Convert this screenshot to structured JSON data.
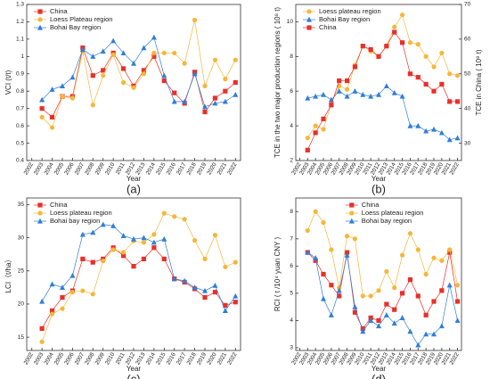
{
  "chart_data": [
    {
      "type": "line",
      "panel_label": "(a)",
      "xlabel": "Year",
      "ylabel": "VCI (t/t)",
      "legend": "upper left",
      "x": [
        2003,
        2004,
        2005,
        2006,
        2007,
        2008,
        2009,
        2010,
        2011,
        2012,
        2013,
        2014,
        2015,
        2016,
        2017,
        2018,
        2019,
        2020,
        2021,
        2022
      ],
      "xlim": [
        2001.5,
        2022.5
      ],
      "xticks": [
        2002,
        2003,
        2004,
        2005,
        2006,
        2007,
        2008,
        2009,
        2010,
        2011,
        2012,
        2013,
        2014,
        2015,
        2016,
        2017,
        2018,
        2019,
        2020,
        2021,
        2022
      ],
      "ylim": [
        0.4,
        1.3
      ],
      "yticks": [
        0.4,
        0.5,
        0.6,
        0.7,
        0.8,
        0.9,
        1.0,
        1.1,
        1.2,
        1.3
      ],
      "series": [
        {
          "name": "China",
          "color": "#e8302a",
          "marker": "s",
          "values": [
            0.7,
            0.65,
            0.77,
            0.77,
            1.05,
            0.89,
            0.92,
            1.02,
            0.93,
            0.83,
            0.92,
            1.0,
            0.86,
            0.79,
            0.73,
            0.91,
            0.68,
            0.76,
            0.8,
            0.85
          ]
        },
        {
          "name": "Loess Plateau region",
          "color": "#f4b73a",
          "marker": "o",
          "values": [
            0.65,
            0.59,
            0.77,
            0.76,
            1.03,
            0.72,
            0.89,
            1.01,
            0.85,
            0.82,
            0.9,
            1.02,
            1.02,
            1.02,
            0.96,
            1.21,
            0.83,
            0.98,
            0.87,
            0.98
          ]
        },
        {
          "name": "Bohai Bay region",
          "color": "#2f7ed8",
          "marker": "^",
          "values": [
            0.75,
            0.81,
            0.83,
            0.88,
            1.04,
            1.0,
            1.03,
            1.09,
            1.02,
            0.96,
            1.05,
            1.11,
            0.89,
            0.74,
            0.74,
            0.9,
            0.71,
            0.73,
            0.74,
            0.78
          ]
        }
      ]
    },
    {
      "type": "line",
      "panel_label": "(b)",
      "xlabel": "Year",
      "ylabel": "TCE in the two major production regions ( 10⁸ t)",
      "y2label": "TCE in China  ( 10⁸ t)",
      "legend": "upper left",
      "x": [
        2003,
        2004,
        2005,
        2006,
        2007,
        2008,
        2009,
        2010,
        2011,
        2012,
        2013,
        2014,
        2015,
        2016,
        2017,
        2018,
        2019,
        2020,
        2021,
        2022
      ],
      "xlim": [
        2001.5,
        2022.5
      ],
      "xticks": [
        2002,
        2003,
        2004,
        2005,
        2006,
        2007,
        2008,
        2009,
        2010,
        2011,
        2012,
        2013,
        2014,
        2015,
        2016,
        2017,
        2018,
        2019,
        2020,
        2021,
        2022
      ],
      "ylim": [
        2,
        11
      ],
      "yticks": [
        2,
        4,
        6,
        8,
        10
      ],
      "y2lim": [
        25,
        70
      ],
      "y2ticks": [
        30,
        40,
        50,
        60,
        70
      ],
      "series": [
        {
          "name": "Loess plateau region",
          "color": "#f4b73a",
          "marker": "o",
          "values": [
            3.3,
            4.0,
            3.8,
            5.3,
            6.3,
            6.1,
            7.5,
            8.6,
            8.3,
            8.0,
            8.6,
            9.7,
            10.4,
            8.8,
            8.7,
            8.0,
            7.4,
            8.2,
            7.0,
            6.9
          ]
        },
        {
          "name": "Bohai Bay region",
          "color": "#2f7ed8",
          "marker": "^",
          "values": [
            5.6,
            5.7,
            5.8,
            5.5,
            6.0,
            5.7,
            6.0,
            5.8,
            5.7,
            5.8,
            6.3,
            5.9,
            5.7,
            4.0,
            4.0,
            3.7,
            3.8,
            3.6,
            3.2,
            3.3
          ]
        },
        {
          "name": "China",
          "color": "#e8302a",
          "marker": "s",
          "axis": "y2",
          "values": [
            28,
            33,
            37,
            41,
            48,
            48,
            52,
            58,
            57,
            55,
            58,
            62,
            59,
            50,
            49,
            47,
            45,
            47,
            42,
            42
          ]
        }
      ]
    },
    {
      "type": "line",
      "panel_label": "(c)",
      "xlabel": "Year",
      "ylabel": "LCI（t/ha）",
      "legend": "upper left",
      "x": [
        2003,
        2004,
        2005,
        2006,
        2007,
        2008,
        2009,
        2010,
        2011,
        2012,
        2013,
        2014,
        2015,
        2016,
        2017,
        2018,
        2019,
        2020,
        2021,
        2022
      ],
      "xlim": [
        2001.5,
        2022.5
      ],
      "xticks": [
        2002,
        2003,
        2004,
        2005,
        2006,
        2007,
        2008,
        2009,
        2010,
        2011,
        2012,
        2013,
        2014,
        2015,
        2016,
        2017,
        2018,
        2019,
        2020,
        2021,
        2022
      ],
      "ylim": [
        13,
        36
      ],
      "yticks": [
        15,
        20,
        25,
        30,
        35
      ],
      "series": [
        {
          "name": "China",
          "color": "#e8302a",
          "marker": "s",
          "values": [
            16.3,
            19.0,
            21.0,
            22.0,
            26.8,
            26.3,
            26.8,
            28.5,
            27.3,
            25.7,
            26.8,
            28.5,
            26.8,
            23.8,
            23.3,
            22.3,
            21.0,
            21.8,
            19.8,
            20.3
          ]
        },
        {
          "name": "Loess plateau region",
          "color": "#f4b73a",
          "marker": "o",
          "values": [
            14.3,
            18.5,
            19.3,
            21.8,
            22.0,
            21.5,
            26.5,
            28.2,
            27.8,
            29.5,
            29.3,
            30.5,
            33.7,
            33.2,
            32.8,
            29.6,
            26.8,
            30.4,
            25.6,
            26.3
          ]
        },
        {
          "name": "Bohai bay region",
          "color": "#2f7ed8",
          "marker": "^",
          "values": [
            20.4,
            23.0,
            22.5,
            24.3,
            30.5,
            30.8,
            32.0,
            31.8,
            30.3,
            29.8,
            30.0,
            29.3,
            29.8,
            23.8,
            23.5,
            22.5,
            22.0,
            22.8,
            19.0,
            21.2
          ]
        }
      ]
    },
    {
      "type": "line",
      "panel_label": "(d)",
      "xlabel": "Year",
      "ylabel": "RCI ( t /10⁴ yuan CNY )",
      "legend": "upper center",
      "x": [
        2003,
        2004,
        2005,
        2006,
        2007,
        2008,
        2009,
        2010,
        2011,
        2012,
        2013,
        2014,
        2015,
        2016,
        2017,
        2018,
        2019,
        2020,
        2021,
        2022
      ],
      "xlim": [
        2001.5,
        2022.5
      ],
      "xticks": [
        2002,
        2003,
        2004,
        2005,
        2006,
        2007,
        2008,
        2009,
        2010,
        2011,
        2012,
        2013,
        2014,
        2015,
        2016,
        2017,
        2018,
        2019,
        2020,
        2021,
        2022
      ],
      "ylim": [
        2.9,
        8.5
      ],
      "yticks": [
        3,
        4,
        5,
        6,
        7,
        8
      ],
      "series": [
        {
          "name": "China",
          "color": "#e8302a",
          "marker": "s",
          "values": [
            6.5,
            6.2,
            5.7,
            5.3,
            4.9,
            6.5,
            4.3,
            3.7,
            4.1,
            4.0,
            4.6,
            4.4,
            5.0,
            5.5,
            4.9,
            4.2,
            4.7,
            5.1,
            6.5,
            4.7
          ]
        },
        {
          "name": "Loess plateau region",
          "color": "#f4b73a",
          "marker": "o",
          "values": [
            7.3,
            8.0,
            7.6,
            6.6,
            5.2,
            7.1,
            7.0,
            4.9,
            4.9,
            5.1,
            5.8,
            5.2,
            6.4,
            7.2,
            6.6,
            5.7,
            6.3,
            6.2,
            6.6,
            5.3
          ]
        },
        {
          "name": "Bohai bay region",
          "color": "#2f7ed8",
          "marker": "^",
          "values": [
            6.5,
            6.3,
            4.8,
            4.2,
            5.1,
            6.4,
            4.5,
            3.6,
            4.0,
            3.8,
            4.2,
            3.9,
            4.1,
            3.6,
            3.1,
            3.5,
            3.5,
            3.8,
            5.3,
            4.0
          ]
        }
      ]
    }
  ]
}
